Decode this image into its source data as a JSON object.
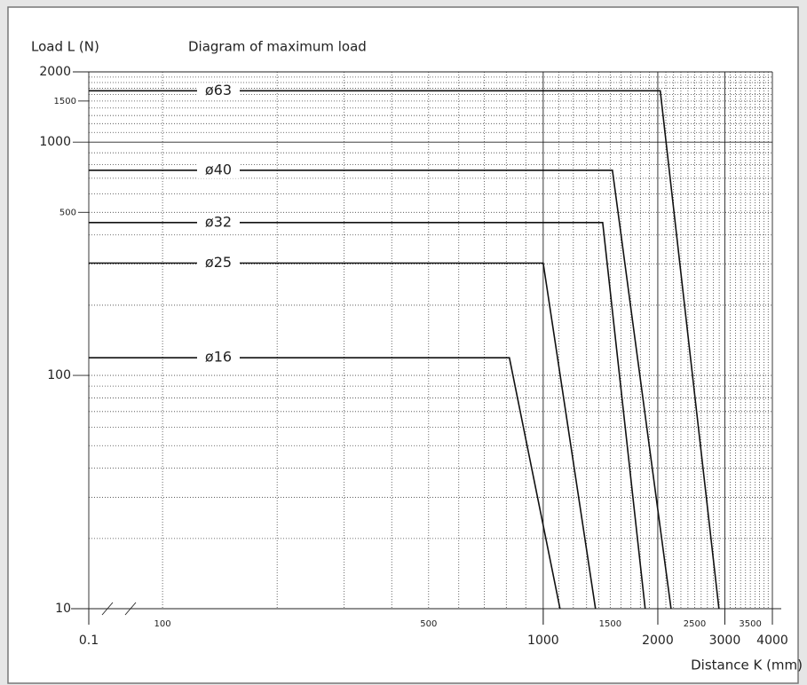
{
  "chart_data": {
    "type": "line",
    "title": "Diagram of maximum load",
    "y_label": "Load L (N)",
    "x_label": "Distance K (mm)",
    "log_x": true,
    "log_y": true,
    "axis_break": true,
    "xlim": [
      64,
      4000
    ],
    "ylim": [
      10,
      2000
    ],
    "xticks": [
      0.1,
      1000,
      2000,
      3000,
      4000
    ],
    "xticks_minor": [
      100,
      500,
      1500,
      2500,
      3500
    ],
    "yticks": [
      10,
      100,
      1000,
      2000
    ],
    "yticks_minor": [
      500,
      1500
    ],
    "xgrid": [
      100,
      200,
      300,
      400,
      500,
      600,
      700,
      800,
      900,
      1100,
      1200,
      1300,
      1400,
      1500,
      1600,
      1700,
      1800,
      1900,
      2100,
      2200,
      2300,
      2400,
      2500,
      2600,
      2700,
      2800,
      2900,
      3100,
      3200,
      3300,
      3400,
      3500,
      3600,
      3700,
      3800,
      3900
    ],
    "xgrid_major": [
      1000,
      2000,
      3000
    ],
    "ygrid": [
      20,
      30,
      40,
      50,
      60,
      70,
      80,
      90,
      100,
      200,
      300,
      400,
      500,
      600,
      700,
      800,
      900,
      1100,
      1200,
      1300,
      1400,
      1500,
      1600,
      1700,
      1800,
      1900
    ],
    "ygrid_major": [
      1000
    ],
    "color": "#111111",
    "series": [
      {
        "name": "ø63",
        "x": [
          0.1,
          2030,
          2895
        ],
        "values": [
          1660,
          1660,
          10
        ]
      },
      {
        "name": "ø40",
        "x": [
          0.1,
          1520,
          2167
        ],
        "values": [
          757,
          757,
          10
        ]
      },
      {
        "name": "ø32",
        "x": [
          0.1,
          1433,
          1853
        ],
        "values": [
          452,
          452,
          10
        ]
      },
      {
        "name": "ø25",
        "x": [
          0.1,
          1000,
          1372
        ],
        "values": [
          303,
          303,
          10
        ]
      },
      {
        "name": "ø16",
        "x": [
          0.1,
          815,
          1107
        ],
        "values": [
          119,
          119,
          10
        ]
      }
    ]
  }
}
